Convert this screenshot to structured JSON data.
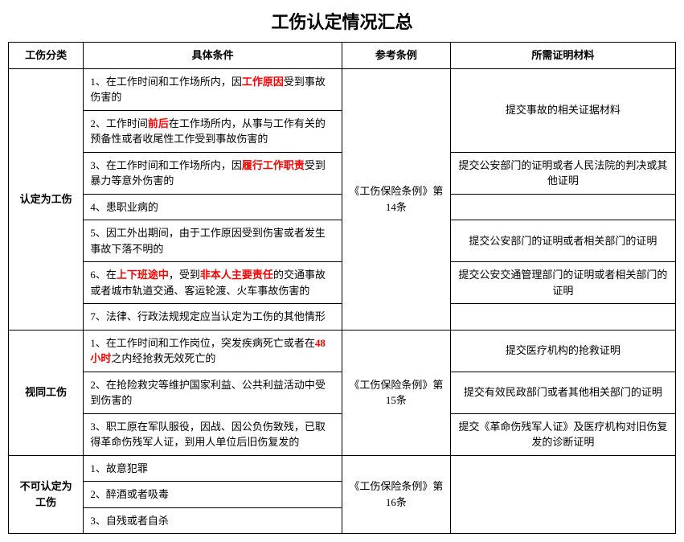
{
  "title": "工伤认定情况汇总",
  "headers": {
    "category": "工伤分类",
    "condition": "具体条件",
    "reference": "参考条例",
    "documents": "所需证明材料"
  },
  "highlight_color": "#ff0000",
  "sections": {
    "s1": {
      "category": "认定为工伤",
      "reference": "《工伤保险条例》第14条",
      "r1": {
        "pre": "1、在工作时间和工作场所内，因",
        "hl": "工作原因",
        "post": "受到事故伤害的"
      },
      "r2": {
        "pre": "2、工作时间",
        "hl": "前后",
        "post": "在工作场所内，从事与工作有关的预备性或者收尾性工作受到事故伤害的"
      },
      "doc12": "提交事故的相关证据材料",
      "r3": {
        "pre": "3、在工作时间和工作场所内，因",
        "hl": "履行工作职责",
        "post": "受到暴力等意外伤害的"
      },
      "doc3": "提交公安部门的证明或者人民法院的判决或其他证明",
      "r4": "4、患职业病的",
      "doc4": "",
      "r5": "5、因工外出期间，由于工作原因受到伤害或者发生事故下落不明的",
      "doc5": "提交公安部门的证明或者相关部门的证明",
      "r6": {
        "pre": "6、在",
        "hl1": "上下班途中",
        "mid": "，受到",
        "hl2": "非本人主要责任",
        "post": "的交通事故或者城市轨道交通、客运轮渡、火车事故伤害的"
      },
      "doc6": "提交公安交通管理部门的证明或者相关部门的证明",
      "r7": "7、法律、行政法规规定应当认定为工伤的其他情形",
      "doc7": ""
    },
    "s2": {
      "category": "视同工伤",
      "reference": "《工伤保险条例》第15条",
      "r1": {
        "pre": "1、在工作时间和工作岗位，突发疾病死亡或者在",
        "hl": "48小时",
        "post": "之内经抢救无效死亡的"
      },
      "doc1": "提交医疗机构的抢救证明",
      "r2": "2、在抢险救灾等维护国家利益、公共利益活动中受到伤害的",
      "doc2": "提交有效民政部门或者其他相关部门的证明",
      "r3": "3、职工原在军队服役，因战、因公负伤致残，已取得革命伤残军人证，到用人单位后旧伤复发的",
      "doc3": "提交《革命伤残军人证》及医疗机构对旧伤复发的诊断证明"
    },
    "s3": {
      "category": "不可认定为工伤",
      "reference": "《工伤保险条例》第16条",
      "r1": "1、故意犯罪",
      "r2": "2、醉酒或者吸毒",
      "r3": "3、自残或者自杀",
      "doc": ""
    }
  }
}
